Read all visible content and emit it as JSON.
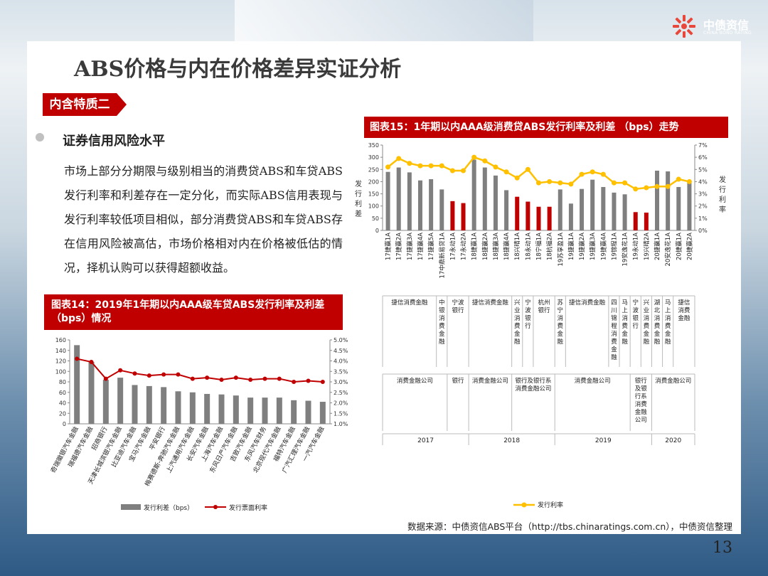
{
  "brand": {
    "name_cn": "中债资信",
    "name_en": "CHINA BOND RATING"
  },
  "title": "ABS价格与内在价格差异实证分析",
  "section_tag": "内含特质二",
  "bullet_heading": "证券信用风险水平",
  "paragraph": "市场上部分分期限与级别相当的消费贷ABS和车贷ABS发行利率和利差存在一定分化，而实际ABS信用表现与发行利率较低项目相似，部分消费贷ABS和车贷ABS存在信用风险被高估，市场价格相对内在价格被低估的情况，择机认购可以获得超额收益。",
  "source": "数据来源：中债资信ABS平台（http://tbs.chinaratings.com.cn），中债资信整理",
  "page_number": "13",
  "colors": {
    "accent": "#c00000",
    "bar_gray": "#7f7f7f",
    "line_yellow": "#ffc000",
    "line_red": "#c00000"
  },
  "chart_data": [
    {
      "id": "fig15",
      "type": "bar+line",
      "title": "图表15：1年期以内AAA级消费贷ABS发行利率及利差 （bps）走势",
      "ylabel": "发行利差",
      "y2label": "发行利率",
      "ylim": [
        0,
        350
      ],
      "yticks": [
        "0",
        "50",
        "100",
        "150",
        "200",
        "250",
        "300",
        "350"
      ],
      "y2lim": [
        0,
        7
      ],
      "y2ticks": [
        "0%",
        "1%",
        "2%",
        "3%",
        "4%",
        "5%",
        "6%",
        "7%"
      ],
      "legend": [
        "发行利率"
      ],
      "categories": [
        "17捷赢1A",
        "17捷赢2A",
        "17捷赢3A",
        "17捷赢4A",
        "17捷赢5A",
        "17中鼎新易贷1A",
        "17永动1A",
        "17永动2A",
        "18捷赢1A",
        "18捷赢2A",
        "18捷赢3A",
        "18捷赢4A",
        "18兴晴1A",
        "18永动1A",
        "18宁福1A",
        "18杭福2A",
        "19苏享盈1A",
        "19捷赢1A",
        "19捷赢2A",
        "19捷赢3A",
        "19捷赢4A",
        "19锦程1A",
        "19安逸花1A",
        "19永动1A",
        "19兴晴2A",
        "20捷赢1A",
        "20安逸花1A",
        "20捷赢1A",
        "20捷赢2A"
      ],
      "bar_values": [
        240,
        258,
        238,
        205,
        210,
        168,
        120,
        112,
        290,
        258,
        225,
        165,
        138,
        118,
        97,
        97,
        168,
        110,
        170,
        208,
        178,
        155,
        148,
        75,
        73,
        245,
        242,
        178,
        195
      ],
      "bar_colors": [
        "gray",
        "gray",
        "gray",
        "gray",
        "gray",
        "gray",
        "red",
        "red",
        "gray",
        "gray",
        "gray",
        "gray",
        "red",
        "red",
        "red",
        "red",
        "gray",
        "gray",
        "gray",
        "gray",
        "gray",
        "gray",
        "gray",
        "red",
        "red",
        "gray",
        "gray",
        "gray",
        "gray"
      ],
      "line_values": [
        5.2,
        5.9,
        5.5,
        5.3,
        5.3,
        5.3,
        4.9,
        4.9,
        6.0,
        5.7,
        5.2,
        4.8,
        4.3,
        5.0,
        3.9,
        4.0,
        3.9,
        3.8,
        4.6,
        4.8,
        4.6,
        3.9,
        3.9,
        3.4,
        3.5,
        3.6,
        3.6,
        4.2,
        4.0
      ],
      "issuers": [
        {
          "label": "捷信消费金融",
          "span": 5
        },
        {
          "label": "中银消费金融",
          "span": 1
        },
        {
          "label": "宁波银行",
          "span": 2
        },
        {
          "label": "捷信消费金融",
          "span": 4
        },
        {
          "label": "兴业消费金融",
          "span": 1
        },
        {
          "label": "宁波银行",
          "span": 1
        },
        {
          "label": "杭州银行",
          "span": 2
        },
        {
          "label": "苏宁消费金融",
          "span": 1
        },
        {
          "label": "捷信消费金融",
          "span": 4
        },
        {
          "label": "四川锦程消费金融",
          "span": 1
        },
        {
          "label": "马上消费金融",
          "span": 1
        },
        {
          "label": "宁波银行",
          "span": 1
        },
        {
          "label": "兴业消费金融",
          "span": 1
        },
        {
          "label": "湖北消费金融",
          "span": 1
        },
        {
          "label": "马上消费金融",
          "span": 1
        },
        {
          "label": "捷信消费金融",
          "span": 2
        }
      ],
      "issuer_types": [
        {
          "label": "消费金融公司",
          "span": 6
        },
        {
          "label": "银行",
          "span": 2
        },
        {
          "label": "消费金融公司",
          "span": 4
        },
        {
          "label": "银行及银行系消费金融公司",
          "span": 4
        },
        {
          "label": "消费金融公司",
          "span": 7
        },
        {
          "label": "银行及银行系消费金融公司",
          "span": 2
        },
        {
          "label": "消费金融公司",
          "span": 4
        }
      ],
      "years": [
        {
          "label": "2017",
          "span": 8
        },
        {
          "label": "2018",
          "span": 8
        },
        {
          "label": "2019",
          "span": 9
        },
        {
          "label": "2020",
          "span": 4
        }
      ]
    },
    {
      "id": "fig14",
      "type": "bar+line",
      "title": "图表14：2019年1年期以内AAA级车贷ABS发行利率及利差（bps）情况",
      "ylim": [
        0,
        160
      ],
      "yticks": [
        "0",
        "20",
        "40",
        "60",
        "80",
        "100",
        "120",
        "140",
        "160"
      ],
      "y2lim": [
        1.0,
        5.0
      ],
      "y2ticks": [
        "1.0%",
        "1.5%",
        "2.0%",
        "2.5%",
        "3.0%",
        "3.5%",
        "4.0%",
        "4.5%",
        "5.0%"
      ],
      "legend": [
        "发行利差（bps）",
        "发行票面利率"
      ],
      "categories": [
        "奇瑞徽银汽车金融",
        "瑞福德汽车金融",
        "招商银行",
        "天津长城滨银汽车金融",
        "比亚迪汽车金融",
        "宝马汽车金融",
        "平安银行",
        "梅赛德斯-奔驰汽车金融",
        "上汽通用汽车金融",
        "长安汽车金融",
        "上海汽车金融",
        "东风日产汽车金融",
        "吉致汽车金融",
        "东风汽车财务",
        "北京现代汽车金融",
        "福特汽车金融",
        "广汽汇理汽车金融",
        "一汽汽车金融"
      ],
      "bar_values": [
        150,
        118,
        84,
        88,
        74,
        72,
        70,
        62,
        60,
        57,
        56,
        54,
        50,
        50,
        50,
        45,
        44,
        42
      ],
      "line_values": [
        4.1,
        3.95,
        3.15,
        3.55,
        3.4,
        3.3,
        3.35,
        3.35,
        3.15,
        3.2,
        3.1,
        3.2,
        3.1,
        3.15,
        3.15,
        3.0,
        3.05,
        3.0
      ]
    }
  ]
}
